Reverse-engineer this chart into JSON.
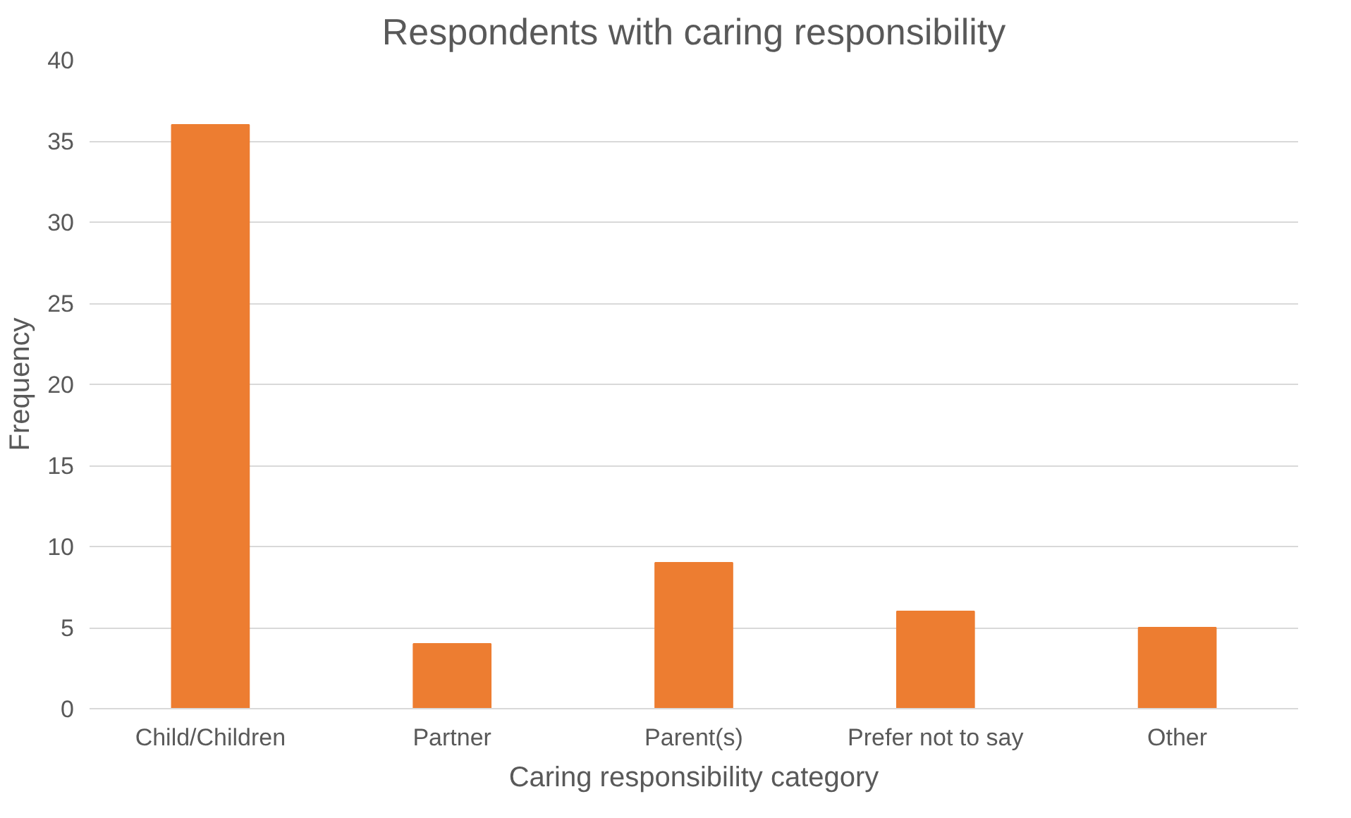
{
  "chart_data": {
    "type": "bar",
    "title": "Respondents with caring responsibility",
    "xlabel": "Caring responsibility category",
    "ylabel": "Frequency",
    "categories": [
      "Child/Children",
      "Partner",
      "Parent(s)",
      "Prefer not to say",
      "Other"
    ],
    "values": [
      36,
      4,
      9,
      6,
      5
    ],
    "color": "#ed7d31",
    "ylim": [
      0,
      40
    ],
    "yticks": [
      0,
      5,
      10,
      15,
      20,
      25,
      30,
      35,
      40
    ],
    "grid": "y"
  }
}
